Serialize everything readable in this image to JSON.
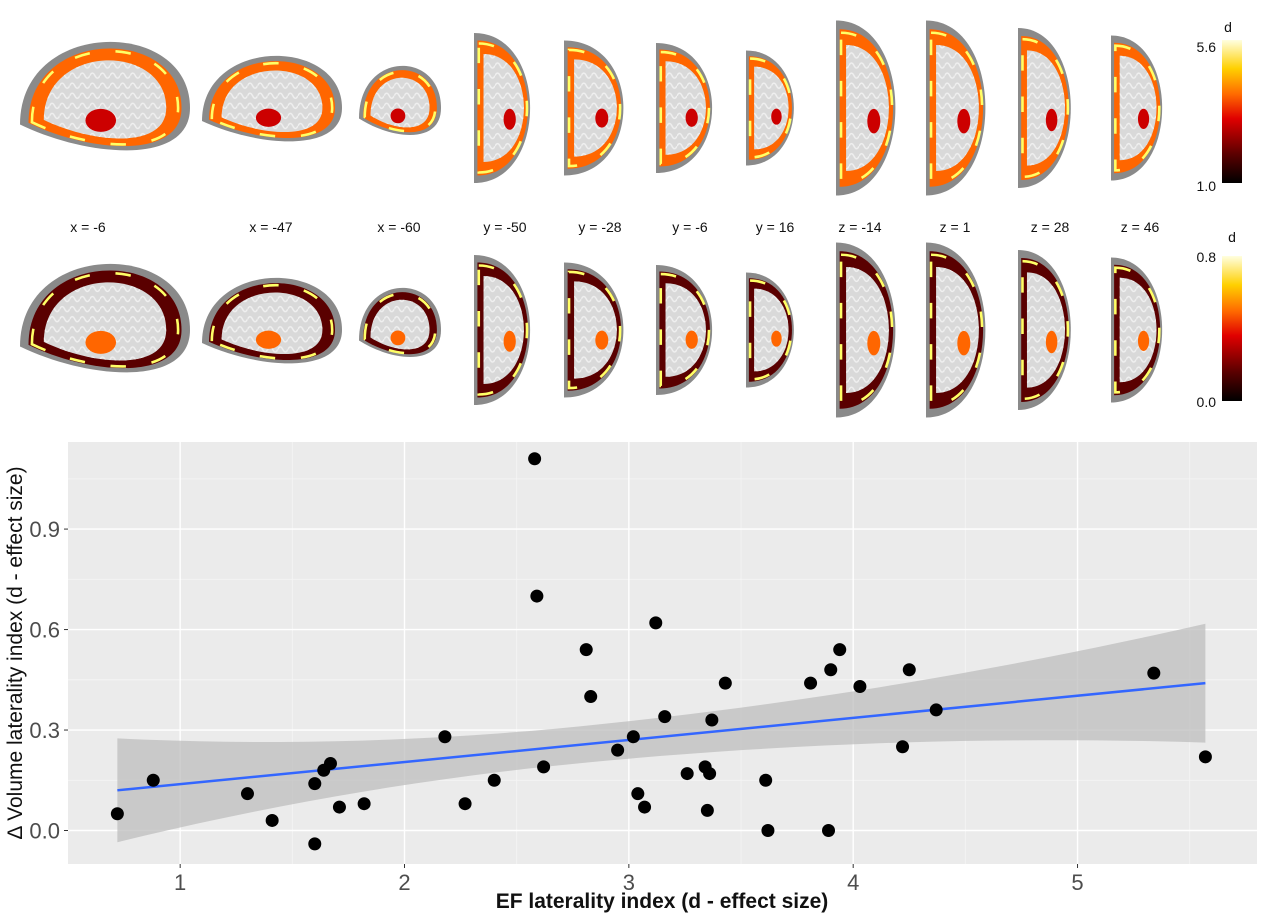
{
  "colors": {
    "panel_bg": "#ebebeb",
    "grid": "#ffffff",
    "point": "#000000",
    "trend": "#3366ff",
    "ribbon": "#c4c4c4",
    "heat": [
      "#000000",
      "#5a0000",
      "#cc0000",
      "#ff6600",
      "#ffcc00",
      "#ffff66",
      "#ffffcc"
    ]
  },
  "brain": {
    "slice_labels": [
      "x = -6",
      "x = -47",
      "x = -60",
      "y = -50",
      "y = -28",
      "y = -6",
      "y = 16",
      "z = -14",
      "z = 1",
      "z = 28",
      "z = 46"
    ],
    "colorbar_top": {
      "title": "d",
      "max": "5.6",
      "min": "1.0"
    },
    "colorbar_bottom": {
      "title": "d",
      "max": "0.8",
      "min": "0.0"
    }
  },
  "chart_data": {
    "type": "scatter",
    "xlabel": "EF laterality index (d - effect size)",
    "ylabel": "Δ Volume laterality index (d - effect size)",
    "xlim": [
      0.5,
      5.8
    ],
    "ylim": [
      -0.1,
      1.16
    ],
    "xticks": [
      1,
      2,
      3,
      4,
      5
    ],
    "xtick_labels": [
      "1",
      "2",
      "3",
      "4",
      "5"
    ],
    "yticks": [
      0.0,
      0.3,
      0.6,
      0.9
    ],
    "ytick_labels": [
      "0.0",
      "0.3",
      "0.6",
      "0.9"
    ],
    "grid": true,
    "points": [
      [
        0.72,
        0.05
      ],
      [
        0.88,
        0.15
      ],
      [
        1.3,
        0.11
      ],
      [
        1.41,
        0.03
      ],
      [
        1.6,
        0.14
      ],
      [
        1.6,
        -0.04
      ],
      [
        1.64,
        0.18
      ],
      [
        1.67,
        0.2
      ],
      [
        1.71,
        0.07
      ],
      [
        1.82,
        0.08
      ],
      [
        2.18,
        0.28
      ],
      [
        2.27,
        0.08
      ],
      [
        2.4,
        0.15
      ],
      [
        2.58,
        1.11
      ],
      [
        2.59,
        0.7
      ],
      [
        2.62,
        0.19
      ],
      [
        2.81,
        0.54
      ],
      [
        2.83,
        0.4
      ],
      [
        2.95,
        0.24
      ],
      [
        3.02,
        0.28
      ],
      [
        3.04,
        0.11
      ],
      [
        3.07,
        0.07
      ],
      [
        3.12,
        0.62
      ],
      [
        3.16,
        0.34
      ],
      [
        3.26,
        0.17
      ],
      [
        3.34,
        0.19
      ],
      [
        3.35,
        0.06
      ],
      [
        3.36,
        0.17
      ],
      [
        3.37,
        0.33
      ],
      [
        3.43,
        0.44
      ],
      [
        3.61,
        0.15
      ],
      [
        3.62,
        0.0
      ],
      [
        3.81,
        0.44
      ],
      [
        3.89,
        0.0
      ],
      [
        3.9,
        0.48
      ],
      [
        3.94,
        0.54
      ],
      [
        4.03,
        0.43
      ],
      [
        4.22,
        0.25
      ],
      [
        4.25,
        0.48
      ],
      [
        4.37,
        0.36
      ],
      [
        5.34,
        0.47
      ],
      [
        5.57,
        0.22
      ]
    ],
    "trend": {
      "x": [
        0.72,
        5.57
      ],
      "y": [
        0.12,
        0.44
      ],
      "ci_lower": [
        -0.035,
        0.26
      ],
      "ci_upper": [
        0.275,
        0.615
      ]
    }
  }
}
